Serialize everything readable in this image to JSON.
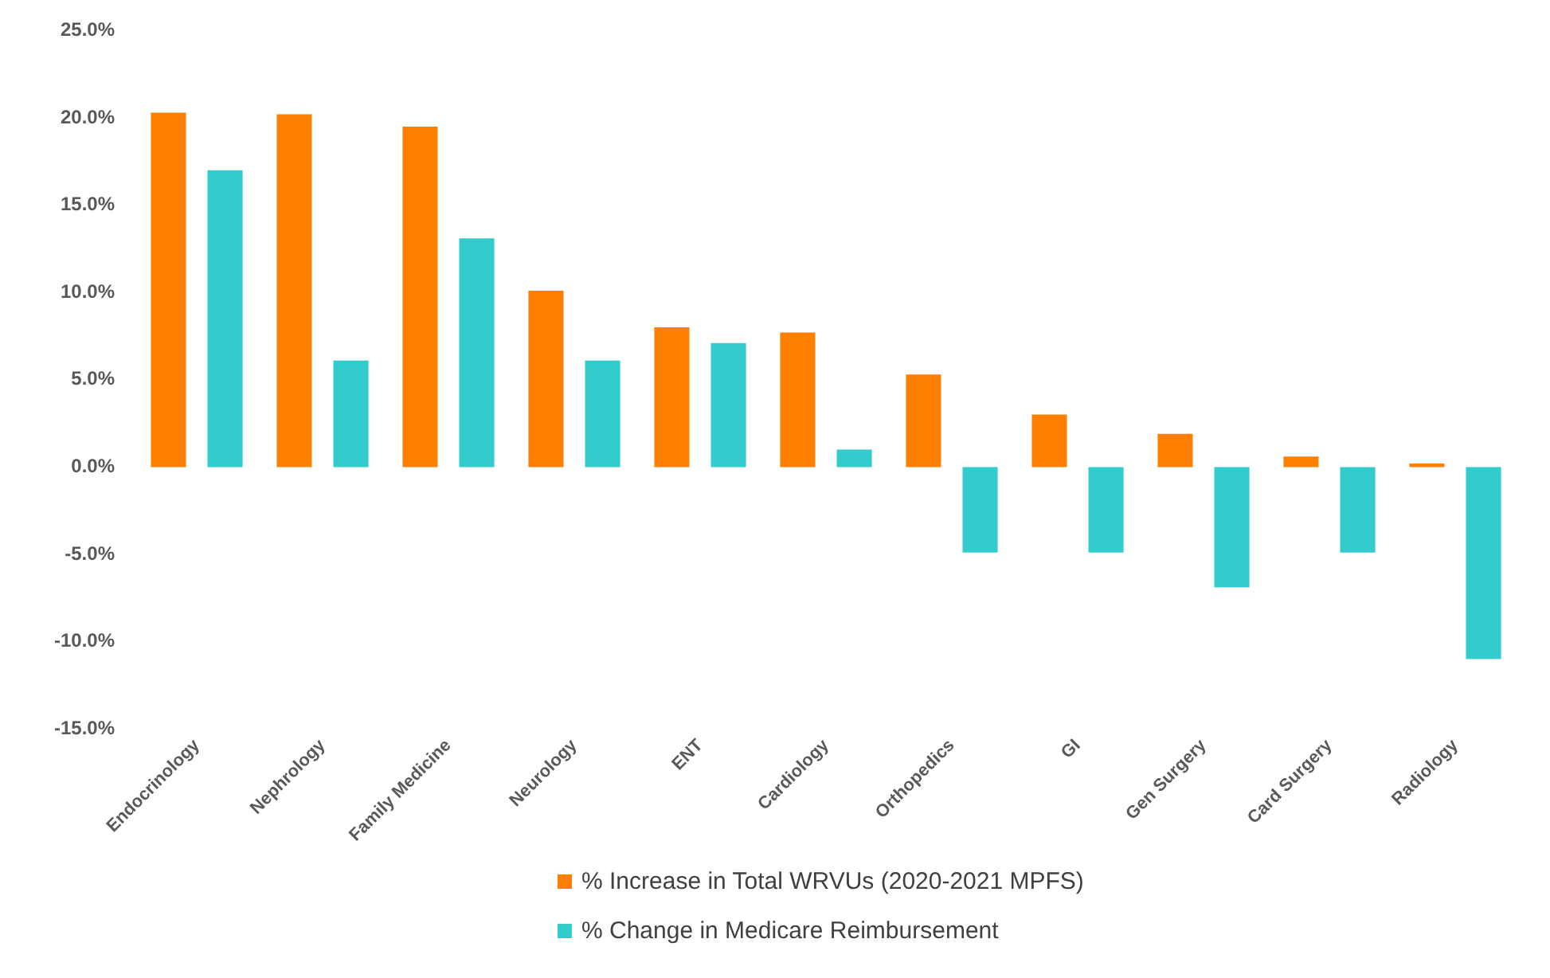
{
  "chart_data": {
    "type": "bar",
    "categories": [
      "Endocrinology",
      "Nephrology",
      "Family Medicine",
      "Neurology",
      "ENT",
      "Cardiology",
      "Orthopedics",
      "GI",
      "Gen Surgery",
      "Card Surgery",
      "Radiology"
    ],
    "series": [
      {
        "name": "% Increase in Total WRVUs (2020-2021 MPFS)",
        "color": "#ff8000",
        "values": [
          20.3,
          20.2,
          19.5,
          10.1,
          8.0,
          7.7,
          5.3,
          3.0,
          1.9,
          0.6,
          0.2
        ]
      },
      {
        "name": "% Change in Medicare Reimbursement",
        "color": "#33cccc",
        "values": [
          17.0,
          6.1,
          13.1,
          6.1,
          7.1,
          1.0,
          -4.9,
          -4.9,
          -6.9,
          -4.9,
          -11.0
        ]
      }
    ],
    "ylim": [
      -15,
      25
    ],
    "yticks": [
      {
        "value": -15,
        "label": "-15.0%"
      },
      {
        "value": -10,
        "label": "-10.0%"
      },
      {
        "value": -5,
        "label": "-5.0%"
      },
      {
        "value": 0,
        "label": "0.0%"
      },
      {
        "value": 5,
        "label": "5.0%"
      },
      {
        "value": 10,
        "label": "10.0%"
      },
      {
        "value": 15,
        "label": "15.0%"
      },
      {
        "value": 20,
        "label": "20.0%"
      },
      {
        "value": 25,
        "label": "25.0%"
      }
    ],
    "grid": false,
    "legend": "bottom"
  }
}
